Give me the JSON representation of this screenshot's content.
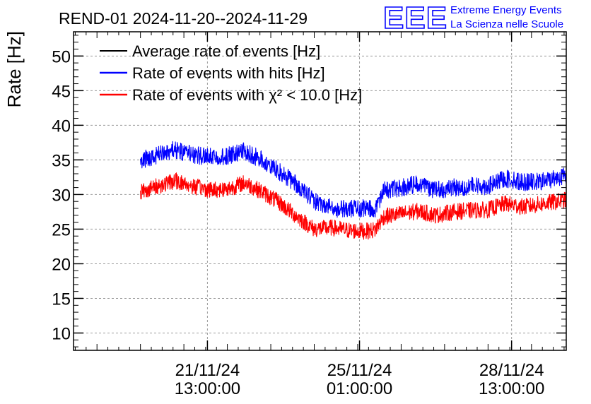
{
  "chart_data": {
    "type": "line",
    "title": "REND-01 2024-11-20--2024-11-29",
    "xlabel": "",
    "ylabel": "Rate [Hz]",
    "ylim": [
      7.5,
      53.5
    ],
    "yticks": [
      10,
      15,
      20,
      25,
      30,
      35,
      40,
      45,
      50
    ],
    "x_unit": "days since 2024-11-20 00:00",
    "xlim": [
      -1.54,
      9.8
    ],
    "xticks": [
      {
        "x": 1.5417,
        "date": "21/11/24",
        "time": "13:00:00"
      },
      {
        "x": 5.0417,
        "date": "25/11/24",
        "time": "01:00:00"
      },
      {
        "x": 8.5417,
        "date": "28/11/24",
        "time": "13:00:00"
      }
    ],
    "grid": true,
    "legend_position": "top-left",
    "series": [
      {
        "name": "Average rate of events [Hz]",
        "color": "#000000",
        "x": [],
        "values": []
      },
      {
        "name": "Rate of events with hits [Hz]",
        "color": "#0000ff",
        "noise_amplitude": 1.3,
        "x": [
          0,
          0.4,
          0.8,
          1.2,
          1.6,
          2.0,
          2.4,
          2.8,
          3.2,
          3.6,
          4.0,
          4.4,
          4.8,
          5.2,
          5.4,
          5.6,
          6.0,
          6.4,
          6.8,
          7.2,
          7.6,
          8.0,
          8.4,
          8.8,
          9.2,
          9.6,
          9.8
        ],
        "values": [
          35.0,
          35.7,
          36.5,
          35.8,
          35.4,
          35.6,
          36.3,
          35.0,
          33.3,
          31.5,
          29.0,
          28.0,
          28.0,
          28.0,
          27.8,
          30.6,
          31.0,
          31.6,
          30.6,
          31.0,
          31.2,
          31.2,
          32.3,
          31.8,
          31.8,
          32.5,
          32.8
        ]
      },
      {
        "name": "Rate of events with χ² < 10.0 [Hz]",
        "color": "#ff0000",
        "noise_amplitude": 1.2,
        "x": [
          0,
          0.4,
          0.8,
          1.2,
          1.6,
          2.0,
          2.4,
          2.8,
          3.2,
          3.6,
          4.0,
          4.4,
          4.8,
          5.2,
          5.4,
          5.6,
          6.0,
          6.4,
          6.8,
          7.2,
          7.6,
          8.0,
          8.4,
          8.8,
          9.2,
          9.6,
          9.8
        ],
        "values": [
          30.4,
          31.2,
          32.0,
          31.2,
          30.7,
          30.8,
          31.7,
          30.4,
          28.8,
          26.8,
          25.0,
          25.2,
          24.8,
          24.7,
          24.9,
          26.8,
          27.2,
          27.6,
          27.0,
          27.5,
          27.7,
          27.8,
          28.7,
          28.2,
          28.6,
          29.0,
          29.2
        ]
      }
    ]
  },
  "logo": {
    "text": "EEE",
    "line1": "Extreme Energy Events",
    "line2": "La Scienza nelle Scuole",
    "color": "#0000ff"
  }
}
